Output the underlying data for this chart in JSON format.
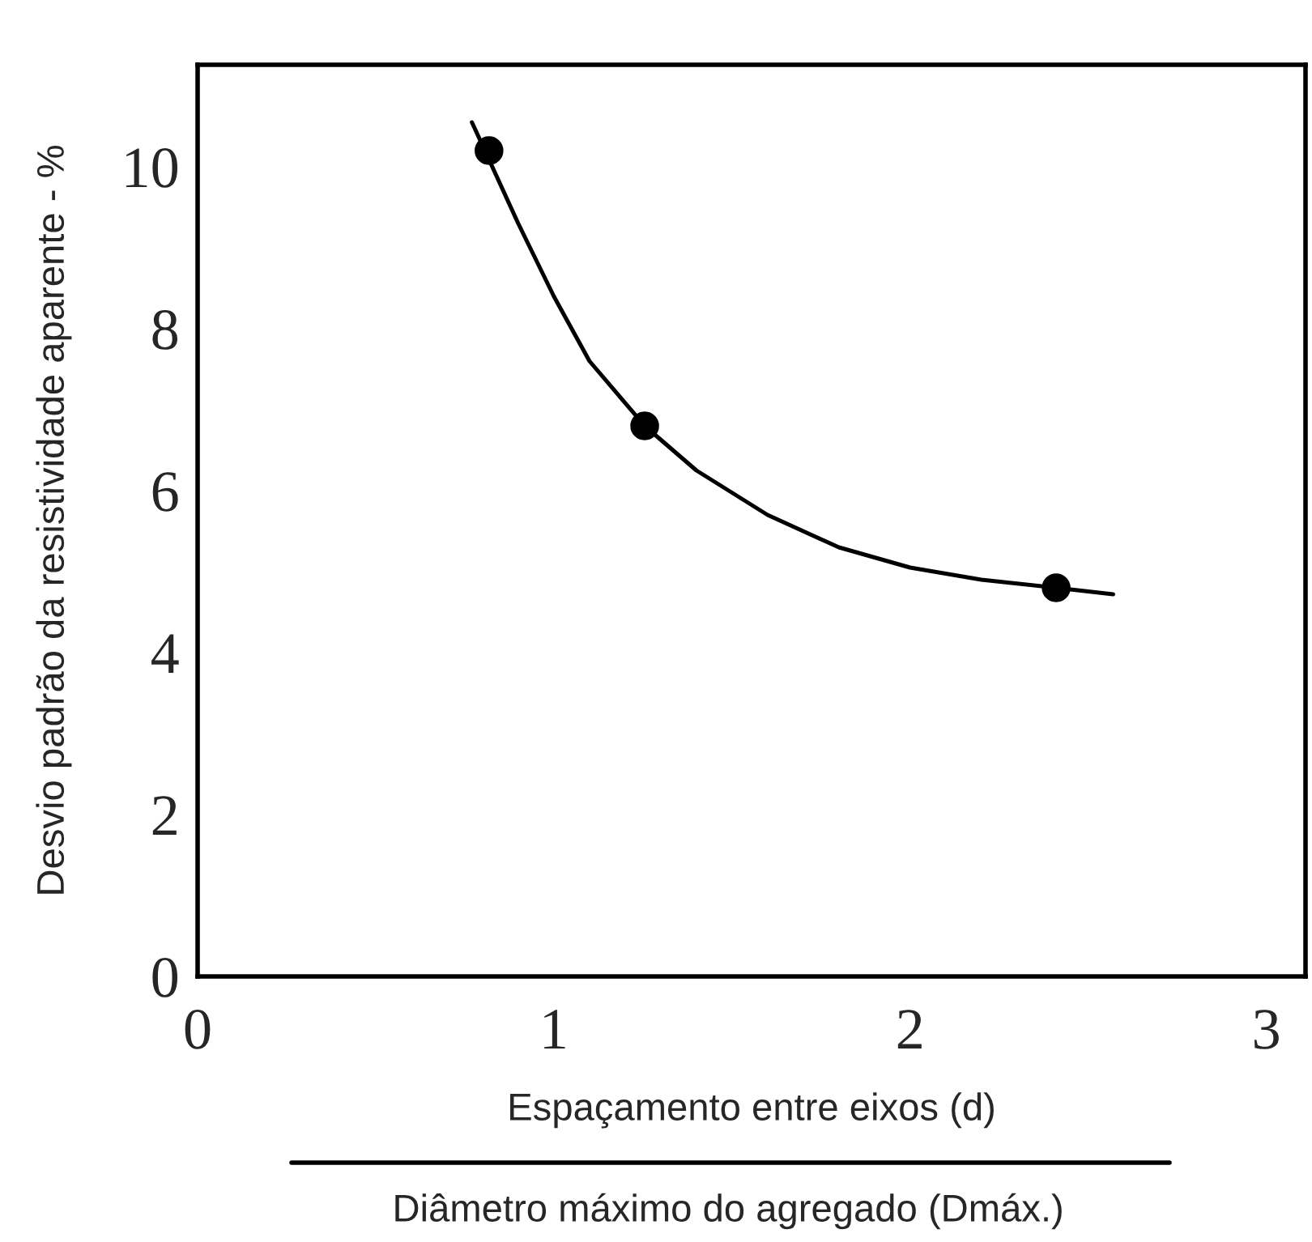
{
  "chart_data": {
    "type": "scatter",
    "xlabel": "Espaçamento entre eixos (d)",
    "ylabel": "Desvio padrão da resistividade aparente - %",
    "annotations": [
      "Diâmetro máximo do agregado (Dmáx.)"
    ],
    "xlim": [
      0,
      3.11
    ],
    "ylim": [
      0,
      11.26
    ],
    "xticks": [
      0,
      1,
      2,
      3
    ],
    "yticks": [
      0,
      2,
      4,
      6,
      8,
      10
    ],
    "grid": false,
    "legend": false,
    "marker": "circle",
    "series": [
      {
        "color": "#000000",
        "x": [
          0.818,
          1.255,
          2.41
        ],
        "values": [
          10.2,
          6.8,
          4.8
        ]
      },
      {
        "type": "line",
        "color": "#000000",
        "line_style": "solid",
        "marker": "none",
        "x": [
          0.77,
          0.9,
          1.0,
          1.1,
          1.255,
          1.4,
          1.6,
          1.8,
          2.0,
          2.2,
          2.41,
          2.57
        ],
        "values": [
          10.55,
          9.3,
          8.4,
          7.6,
          6.8,
          6.25,
          5.7,
          5.3,
          5.05,
          4.9,
          4.8,
          4.72
        ]
      }
    ]
  }
}
